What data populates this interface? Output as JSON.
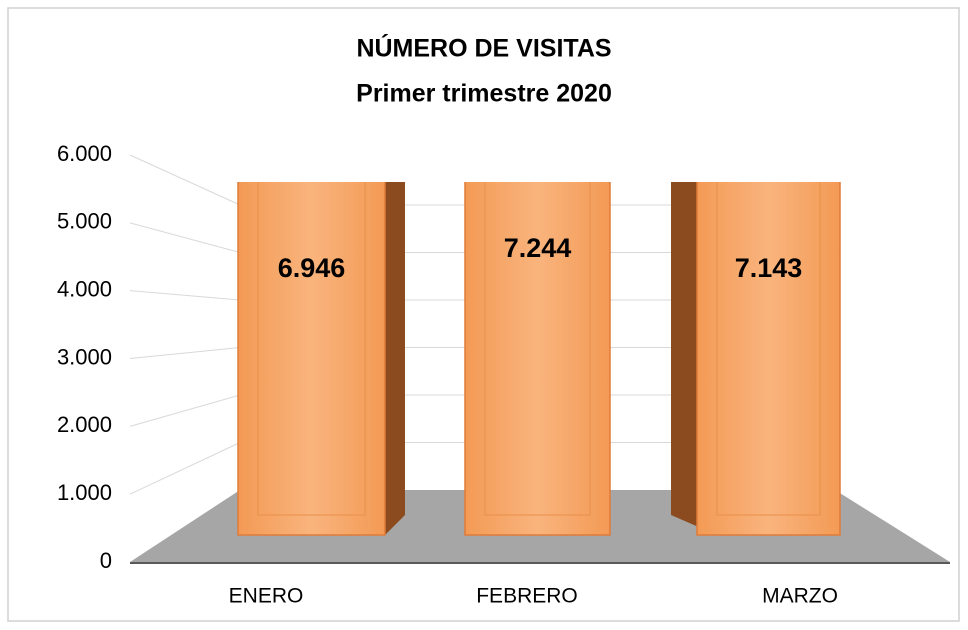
{
  "chart_data": {
    "type": "bar3d",
    "title": "NÚMERO DE VISITAS",
    "subtitle": "Primer trimestre 2020",
    "categories": [
      "ENERO",
      "FEBRERO",
      "MARZO"
    ],
    "values": [
      6946,
      7244,
      7143
    ],
    "value_labels": [
      "6.946",
      "7.244",
      "7.143"
    ],
    "color": "#f7a766",
    "ylim": [
      0,
      6000
    ],
    "yticks": [
      0,
      {
        "value": 1000,
        "label": "1.000"
      },
      {
        "value": 2000,
        "label": "2.000"
      },
      {
        "value": 3000,
        "label": "3.000"
      },
      {
        "value": 4000,
        "label": "4.000"
      },
      {
        "value": 5000,
        "label": "5.000"
      },
      {
        "value": 6000,
        "label": "6.000"
      }
    ],
    "grid": true
  }
}
